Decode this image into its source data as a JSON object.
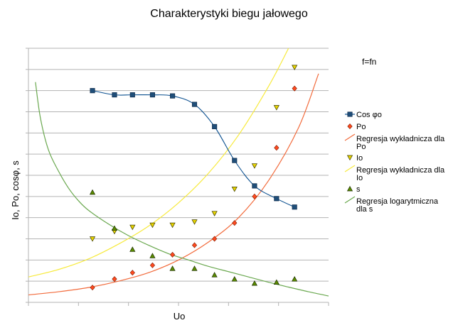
{
  "chart_data": {
    "type": "scatter",
    "title": "Charakterystyki biegu jałowego",
    "xlabel": "Uo",
    "ylabel": "Io, Po, cosφ, s",
    "annotation": "f=fn",
    "grid": "horizontal",
    "legend_position": "right",
    "xlim": [
      0,
      15
    ],
    "ylim": [
      0,
      12
    ],
    "series": [
      {
        "name": "Cos φo",
        "kind": "line-markers",
        "marker": "square",
        "color": "#0a4f8f",
        "marker_fill": "#1f4e79",
        "x": [
          3.2,
          4.3,
          5.2,
          6.2,
          7.2,
          8.3,
          9.3,
          10.3,
          11.3,
          12.4,
          13.3
        ],
        "y": [
          10.0,
          9.8,
          9.8,
          9.8,
          9.75,
          9.35,
          8.3,
          6.7,
          5.5,
          4.9,
          4.5
        ]
      },
      {
        "name": "Po",
        "kind": "markers",
        "marker": "diamond",
        "color": "#ff4a1f",
        "x": [
          3.2,
          4.3,
          5.2,
          6.2,
          7.2,
          8.3,
          9.3,
          10.3,
          11.3,
          12.4,
          13.3
        ],
        "y": [
          0.7,
          1.1,
          1.4,
          1.75,
          2.25,
          2.7,
          3.0,
          3.75,
          5.0,
          7.3,
          10.1
        ]
      },
      {
        "name": "Regresja wykładnicza dla Po",
        "kind": "trend",
        "color": "#f26b3c",
        "x": [
          0,
          1.5,
          3,
          4.5,
          6,
          7.5,
          9,
          10.5,
          12,
          13.5,
          14.5
        ],
        "y": [
          0.35,
          0.5,
          0.7,
          1.0,
          1.4,
          2.0,
          2.85,
          4.0,
          5.75,
          8.25,
          10.8
        ]
      },
      {
        "name": "Io",
        "kind": "markers",
        "marker": "triangle-down",
        "color": "#e8d400",
        "x": [
          3.2,
          4.3,
          5.2,
          6.2,
          7.2,
          8.3,
          9.3,
          10.3,
          11.3,
          12.4,
          13.3
        ],
        "y": [
          3.0,
          3.35,
          3.55,
          3.65,
          3.65,
          3.8,
          4.2,
          5.35,
          6.45,
          9.2,
          11.1
        ]
      },
      {
        "name": "Regresja wykładnicza dla Io",
        "kind": "trend",
        "color": "#f7ea3c",
        "x": [
          0,
          1.5,
          3,
          4.5,
          6,
          7.5,
          9,
          10.5,
          12,
          13.0
        ],
        "y": [
          1.2,
          1.55,
          2.05,
          2.75,
          3.6,
          4.7,
          6.1,
          7.9,
          10.2,
          12.0
        ]
      },
      {
        "name": "s",
        "kind": "markers",
        "marker": "triangle-up",
        "color": "#5b8c00",
        "x": [
          3.2,
          4.3,
          5.2,
          6.2,
          7.2,
          8.3,
          9.3,
          10.3,
          11.3,
          12.4,
          13.3
        ],
        "y": [
          5.2,
          3.5,
          2.5,
          2.2,
          1.6,
          1.6,
          1.3,
          1.1,
          0.9,
          0.95,
          1.1
        ]
      },
      {
        "name": "Regresja logarytmiczna dla s",
        "kind": "trend",
        "color": "#6aa84f",
        "x": [
          0.35,
          0.6,
          1,
          1.5,
          2,
          2.5,
          3,
          4,
          5,
          6,
          7,
          8,
          9,
          10,
          11,
          12,
          13,
          14,
          15
        ],
        "y": [
          10.4,
          8.7,
          7.2,
          6.2,
          5.4,
          4.8,
          4.35,
          3.7,
          3.15,
          2.7,
          2.3,
          2.0,
          1.7,
          1.45,
          1.2,
          0.95,
          0.72,
          0.5,
          0.3
        ]
      }
    ],
    "legend_lines": [
      [
        "Cos φo"
      ],
      [
        "Po"
      ],
      [
        "Regresja wykładnicza dla",
        "Po"
      ],
      [
        "Io"
      ],
      [
        "Regresja wykładnicza dla",
        "Io"
      ],
      [
        "s"
      ],
      [
        "Regresja logarytmiczna",
        "dla s"
      ]
    ]
  }
}
